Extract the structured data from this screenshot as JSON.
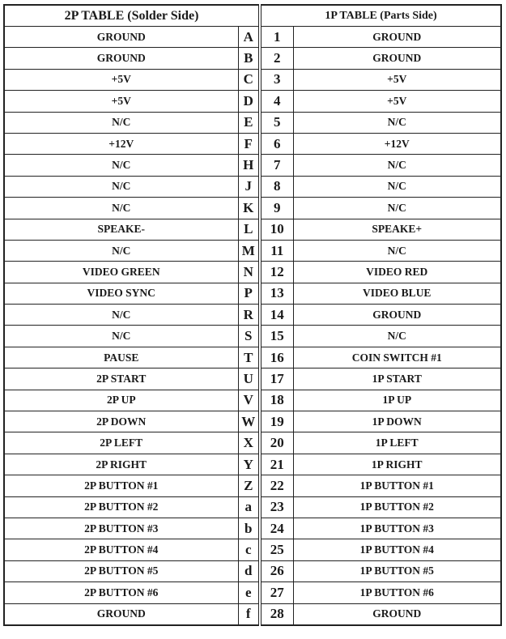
{
  "header": {
    "left": "2P TABLE (Solder Side)",
    "right": "1P TABLE (Parts Side)"
  },
  "rows": [
    {
      "solder": "GROUND",
      "letter": "A",
      "num": "1",
      "parts": "GROUND"
    },
    {
      "solder": "GROUND",
      "letter": "B",
      "num": "2",
      "parts": "GROUND"
    },
    {
      "solder": "+5V",
      "letter": "C",
      "num": "3",
      "parts": "+5V"
    },
    {
      "solder": "+5V",
      "letter": "D",
      "num": "4",
      "parts": "+5V"
    },
    {
      "solder": "N/C",
      "letter": "E",
      "num": "5",
      "parts": "N/C"
    },
    {
      "solder": "+12V",
      "letter": "F",
      "num": "6",
      "parts": "+12V"
    },
    {
      "solder": "N/C",
      "letter": "H",
      "num": "7",
      "parts": "N/C"
    },
    {
      "solder": "N/C",
      "letter": "J",
      "num": "8",
      "parts": "N/C"
    },
    {
      "solder": "N/C",
      "letter": "K",
      "num": "9",
      "parts": "N/C"
    },
    {
      "solder": "SPEAKE-",
      "letter": "L",
      "num": "10",
      "parts": "SPEAKE+"
    },
    {
      "solder": "N/C",
      "letter": "M",
      "num": "11",
      "parts": "N/C"
    },
    {
      "solder": "VIDEO GREEN",
      "letter": "N",
      "num": "12",
      "parts": "VIDEO RED"
    },
    {
      "solder": "VIDEO SYNC",
      "letter": "P",
      "num": "13",
      "parts": "VIDEO BLUE"
    },
    {
      "solder": "N/C",
      "letter": "R",
      "num": "14",
      "parts": "GROUND"
    },
    {
      "solder": "N/C",
      "letter": "S",
      "num": "15",
      "parts": "N/C"
    },
    {
      "solder": "PAUSE",
      "letter": "T",
      "num": "16",
      "parts": "COIN SWITCH #1"
    },
    {
      "solder": "2P START",
      "letter": "U",
      "num": "17",
      "parts": "1P START"
    },
    {
      "solder": "2P UP",
      "letter": "V",
      "num": "18",
      "parts": "1P UP"
    },
    {
      "solder": "2P DOWN",
      "letter": "W",
      "num": "19",
      "parts": "1P DOWN"
    },
    {
      "solder": "2P LEFT",
      "letter": "X",
      "num": "20",
      "parts": "1P LEFT"
    },
    {
      "solder": "2P RIGHT",
      "letter": "Y",
      "num": "21",
      "parts": "1P RIGHT"
    },
    {
      "solder": "2P BUTTON #1",
      "letter": "Z",
      "num": "22",
      "parts": "1P BUTTON #1"
    },
    {
      "solder": "2P BUTTON #2",
      "letter": "a",
      "num": "23",
      "parts": "1P BUTTON #2"
    },
    {
      "solder": "2P BUTTON #3",
      "letter": "b",
      "num": "24",
      "parts": "1P BUTTON #3"
    },
    {
      "solder": "2P BUTTON #4",
      "letter": "c",
      "num": "25",
      "parts": "1P BUTTON #4"
    },
    {
      "solder": "2P BUTTON #5",
      "letter": "d",
      "num": "26",
      "parts": "1P BUTTON #5"
    },
    {
      "solder": "2P BUTTON #6",
      "letter": "e",
      "num": "27",
      "parts": "1P BUTTON #6"
    },
    {
      "solder": "GROUND",
      "letter": "f",
      "num": "28",
      "parts": "GROUND"
    }
  ]
}
